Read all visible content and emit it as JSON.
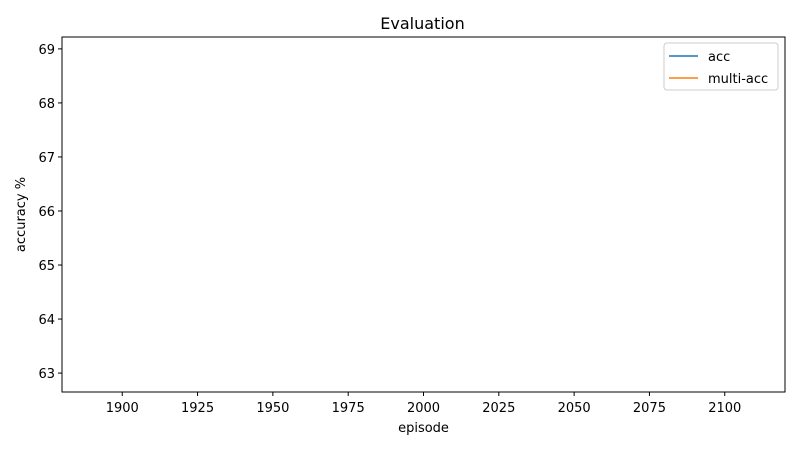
{
  "chart_data": {
    "type": "line",
    "title": "Evaluation",
    "xlabel": "episode",
    "ylabel": "accuracy %",
    "xlim": [
      1880,
      2120
    ],
    "ylim": [
      62.65,
      69.22
    ],
    "xticks": [
      1900,
      1925,
      1950,
      1975,
      2000,
      2025,
      2050,
      2075,
      2100
    ],
    "yticks": [
      63,
      64,
      65,
      66,
      67,
      68,
      69
    ],
    "grid": false,
    "legend_position": "top-right",
    "series": [
      {
        "name": "acc",
        "color": "#1f77b4",
        "x": [],
        "y": []
      },
      {
        "name": "multi-acc",
        "color": "#ff7f0e",
        "x": [],
        "y": []
      }
    ]
  }
}
